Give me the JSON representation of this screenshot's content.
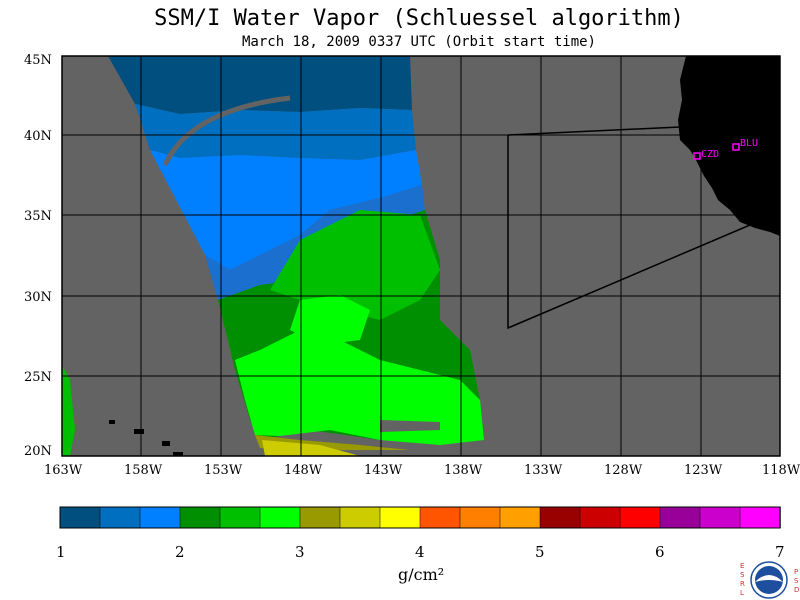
{
  "title": "SSM/I Water Vapor (Schluessel algorithm)",
  "subtitle": "March 18, 2009  0337 UTC  (Orbit start time)",
  "latitude_labels": [
    "45N",
    "40N",
    "35N",
    "30N",
    "25N",
    "20N"
  ],
  "longitude_labels": [
    "163W",
    "158W",
    "153W",
    "148W",
    "143W",
    "138W",
    "133W",
    "128W",
    "123W",
    "118W"
  ],
  "stations": [
    {
      "id": "CZD",
      "label": "CZD"
    },
    {
      "id": "BLU",
      "label": "BLU"
    }
  ],
  "colorbar": {
    "tick_labels": [
      "1",
      "2",
      "3",
      "4",
      "5",
      "6",
      "7"
    ],
    "units": "g/cm²",
    "range": [
      1,
      7
    ],
    "colors": [
      "#004f7f",
      "#006fbf",
      "#0080ff",
      "#008f00",
      "#00bf00",
      "#00ff00",
      "#999900",
      "#cccc00",
      "#ffff00",
      "#ff5500",
      "#ff7f00",
      "#ffa000",
      "#990000",
      "#cc0000",
      "#ff0000",
      "#990099",
      "#cc00cc",
      "#ff00ff"
    ]
  },
  "colors": {
    "background_no_data": "#636363",
    "land": "#000000",
    "station_marker": "#ff00ff",
    "grid": "#000000"
  },
  "logo": {
    "left_letters": [
      "E",
      "S",
      "R",
      "L"
    ],
    "right_letters": [
      "P",
      "S",
      "D"
    ],
    "center_text": "NOAA"
  }
}
